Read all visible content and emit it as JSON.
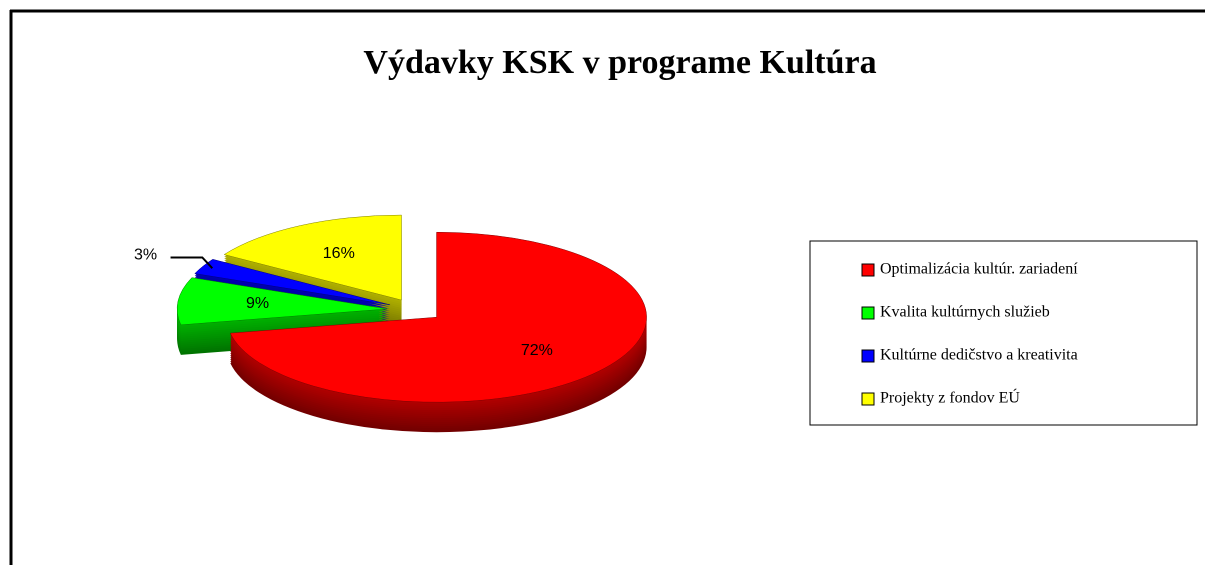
{
  "chart_data": {
    "type": "pie",
    "title": "Výdavky KSK v programe Kultúra",
    "categories": [
      "Optimalizácia kultúr. zariadení",
      "Kvalita kultúrnych služieb",
      "Kultúrne dedičstvo a kreativita",
      "Projekty z fondov EÚ"
    ],
    "values": [
      72,
      9,
      3,
      16
    ],
    "value_labels": [
      "72%",
      "9%",
      "3%",
      "16%"
    ],
    "colors": [
      "#ff0000",
      "#00ff00",
      "#0000ff",
      "#ffff00"
    ],
    "legend": "right"
  }
}
